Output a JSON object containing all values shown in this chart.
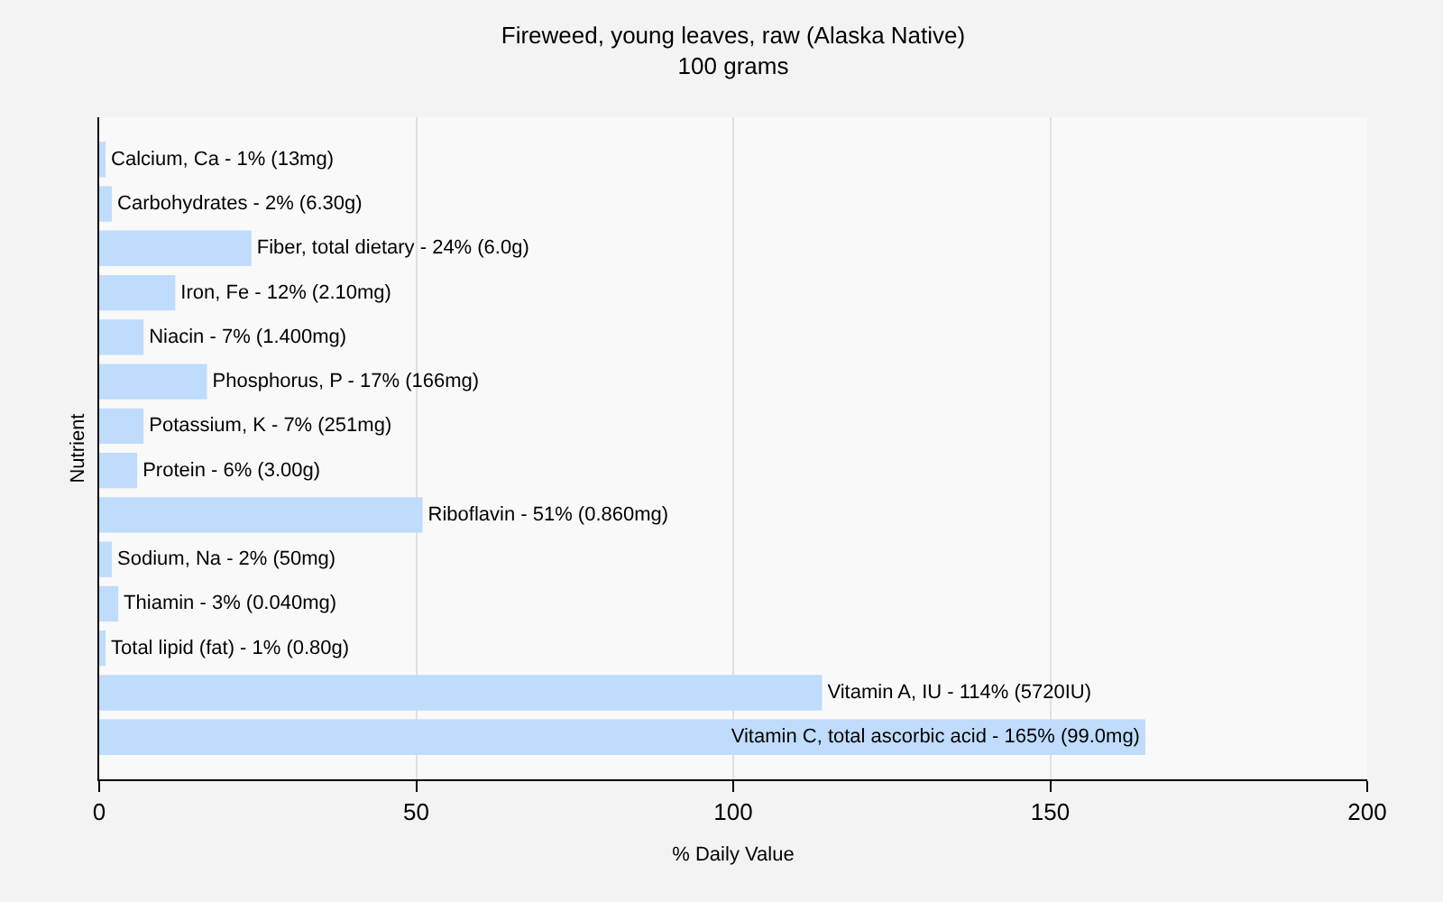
{
  "chart_data": {
    "type": "bar",
    "orientation": "horizontal",
    "title": "Fireweed, young leaves, raw (Alaska Native)",
    "subtitle": "100 grams",
    "xlabel": "% Daily Value",
    "ylabel": "Nutrient",
    "categories": [
      "Calcium, Ca -",
      "Carbohydrates -",
      "Fiber, total dietary -",
      "Iron, Fe -",
      "Niacin -",
      "Phosphorus, P -",
      "Potassium, K -",
      "Protein -",
      "Riboflavin -",
      "Sodium, Na -",
      "Thiamin -",
      "Total lipid (fat) -",
      "Vitamin A, IU -",
      "Vitamin C, total ascorbic acid -"
    ],
    "values": [
      1,
      2,
      24,
      12,
      7,
      17,
      7,
      6,
      51,
      2,
      3,
      1,
      114,
      165
    ],
    "value_labels": [
      "1% (13mg)",
      "2% (6.30g)",
      "24% (6.0g)",
      "12% (2.10mg)",
      "7% (1.400mg)",
      "17% (166mg)",
      "7% (251mg)",
      "6% (3.00g)",
      "51% (0.860mg)",
      "2% (50mg)",
      "3% (0.040mg)",
      "1% (0.80g)",
      "114% (5720IU)",
      "165% (99.0mg)"
    ],
    "color": "#c0dcfc",
    "xlim": [
      0,
      200
    ],
    "xticks": [
      0,
      50,
      100,
      150,
      200
    ],
    "grid": "x",
    "tick_labels": "x"
  }
}
